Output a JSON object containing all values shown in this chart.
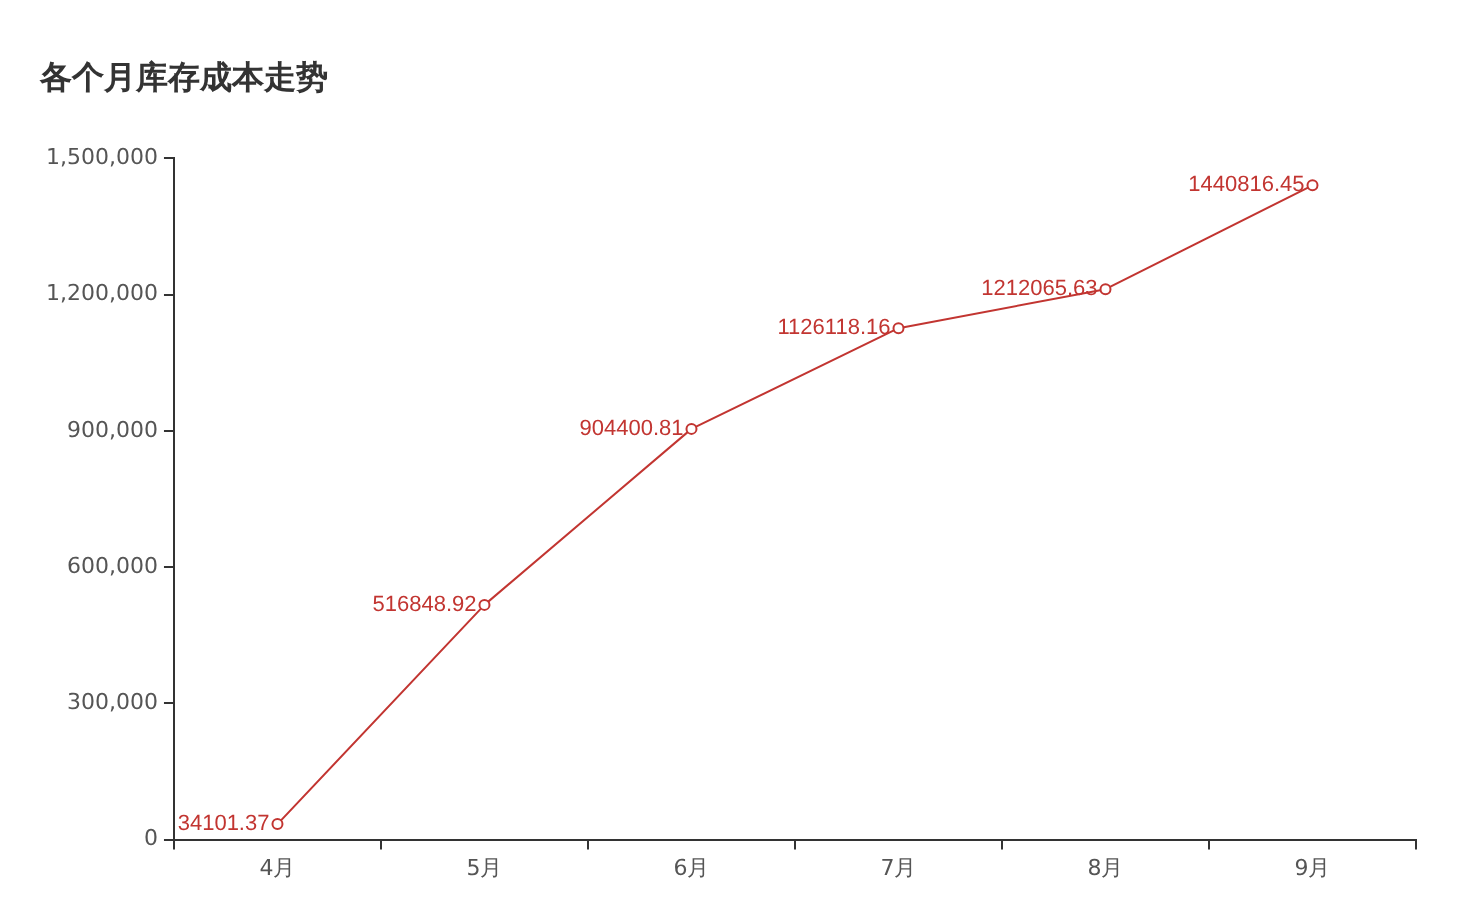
{
  "chart_data": {
    "type": "line",
    "title": "各个月库存成本走势",
    "categories": [
      "4月",
      "5月",
      "6月",
      "7月",
      "8月",
      "9月"
    ],
    "series": [
      {
        "color": "#c23531",
        "values": [
          34101.37,
          516848.92,
          904400.81,
          1126118.16,
          1212065.63,
          1440816.45
        ]
      }
    ],
    "ylim": [
      0,
      1500000
    ],
    "yticks": [
      0,
      {
        "value": 300000,
        "label": "300,000"
      },
      {
        "value": 600000,
        "label": "600,000"
      },
      {
        "value": 900000,
        "label": "900,000"
      },
      {
        "value": 1200000,
        "label": "1,200,000"
      },
      {
        "value": 1500000,
        "label": "1,500,000"
      }
    ],
    "marker": "circle",
    "data_labels": true,
    "legend": false,
    "grid": false
  }
}
